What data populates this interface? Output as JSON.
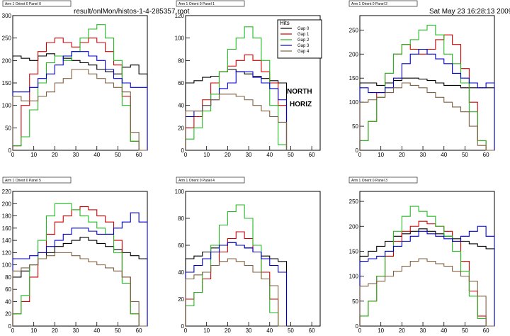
{
  "header": {
    "filename": "result/onlMon/histos-1-4-285357.root",
    "datetime": "Sat May 23 16:28:13 2009"
  },
  "legend": {
    "title": "Hits",
    "entries": [
      "Gap 0",
      "Gap 1",
      "Gap 2",
      "Gap 3",
      "Gap 4"
    ]
  },
  "annotation": {
    "line1": "NORTH",
    "line2": "HORIZ"
  },
  "colors": {
    "Gap 0": "#000000",
    "Gap 1": "#d00000",
    "Gap 2": "#22bb22",
    "Gap 3": "#0000cc",
    "Gap 4": "#806040"
  },
  "chart_data": [
    {
      "type": "histogram",
      "title": "Arm 1 Orient 0 Panel 0",
      "xlim": [
        0,
        64
      ],
      "ylim": [
        0,
        300
      ],
      "xticks": [
        0,
        10,
        20,
        30,
        40,
        50,
        60
      ],
      "yticks": [
        0,
        50,
        100,
        150,
        200,
        250,
        300
      ],
      "x": [
        0,
        4,
        8,
        12,
        16,
        20,
        24,
        28,
        32,
        36,
        40,
        44,
        48,
        52,
        56,
        60
      ],
      "series": [
        {
          "name": "Gap 0",
          "values": [
            210,
            205,
            200,
            210,
            215,
            210,
            205,
            200,
            195,
            190,
            180,
            175,
            170,
            185,
            190,
            170
          ]
        },
        {
          "name": "Gap 1",
          "values": [
            10,
            100,
            170,
            220,
            240,
            250,
            240,
            230,
            240,
            250,
            240,
            220,
            190,
            120,
            20,
            0
          ]
        },
        {
          "name": "Gap 2",
          "values": [
            10,
            30,
            90,
            150,
            195,
            210,
            200,
            220,
            250,
            270,
            280,
            250,
            200,
            100,
            20,
            0
          ]
        },
        {
          "name": "Gap 3",
          "values": [
            130,
            130,
            140,
            160,
            170,
            190,
            210,
            220,
            220,
            210,
            200,
            180,
            160,
            150,
            140,
            140
          ]
        },
        {
          "name": "Gap 4",
          "values": [
            120,
            110,
            110,
            120,
            130,
            150,
            160,
            180,
            180,
            170,
            160,
            150,
            140,
            130,
            40,
            0
          ]
        }
      ]
    },
    {
      "type": "histogram",
      "title": "Arm 1 Orient 0 Panel 1",
      "xlim": [
        0,
        64
      ],
      "ylim": [
        0,
        120
      ],
      "xticks": [
        0,
        10,
        20,
        30,
        40,
        50,
        60
      ],
      "yticks": [
        0,
        20,
        40,
        60,
        80,
        100,
        120
      ],
      "x": [
        0,
        4,
        8,
        12,
        16,
        20,
        24,
        28,
        32,
        36,
        40,
        44
      ],
      "series": [
        {
          "name": "Gap 0",
          "values": [
            60,
            62,
            65,
            66,
            70,
            72,
            70,
            68,
            66,
            64,
            62,
            60
          ]
        },
        {
          "name": "Gap 1",
          "values": [
            20,
            30,
            45,
            60,
            70,
            75,
            80,
            85,
            80,
            70,
            60,
            40
          ]
        },
        {
          "name": "Gap 2",
          "values": [
            10,
            20,
            35,
            50,
            70,
            90,
            100,
            110,
            100,
            80,
            40,
            5
          ]
        },
        {
          "name": "Gap 3",
          "values": [
            30,
            35,
            40,
            45,
            55,
            60,
            70,
            70,
            65,
            60,
            55,
            45
          ]
        },
        {
          "name": "Gap 4",
          "values": [
            35,
            35,
            40,
            45,
            50,
            50,
            48,
            45,
            40,
            35,
            30,
            25
          ]
        }
      ]
    },
    {
      "type": "histogram",
      "title": "Arm 1 Orient 0 Panel 2",
      "xlim": [
        0,
        64
      ],
      "ylim": [
        0,
        280
      ],
      "xticks": [
        0,
        10,
        20,
        30,
        40,
        50,
        60
      ],
      "yticks": [
        0,
        50,
        100,
        150,
        200,
        250
      ],
      "x": [
        0,
        4,
        8,
        12,
        16,
        20,
        24,
        28,
        32,
        36,
        40,
        44,
        48,
        52,
        56,
        60
      ],
      "series": [
        {
          "name": "Gap 0",
          "values": [
            140,
            140,
            135,
            140,
            145,
            150,
            150,
            148,
            145,
            140,
            135,
            135,
            130,
            130,
            130,
            130
          ]
        },
        {
          "name": "Gap 1",
          "values": [
            20,
            60,
            120,
            160,
            200,
            220,
            210,
            200,
            210,
            230,
            240,
            220,
            170,
            100,
            20,
            0
          ]
        },
        {
          "name": "Gap 2",
          "values": [
            20,
            60,
            110,
            160,
            200,
            220,
            230,
            250,
            260,
            240,
            200,
            180,
            140,
            80,
            20,
            0
          ]
        },
        {
          "name": "Gap 3",
          "values": [
            130,
            120,
            120,
            130,
            150,
            180,
            200,
            210,
            200,
            190,
            180,
            160,
            150,
            140,
            130,
            140
          ]
        },
        {
          "name": "Gap 4",
          "values": [
            100,
            105,
            110,
            120,
            130,
            140,
            135,
            130,
            120,
            110,
            100,
            90,
            80,
            50,
            10,
            0
          ]
        }
      ]
    },
    {
      "type": "histogram",
      "title": "Arm 1 Orient 0 Panel 5",
      "xlim": [
        0,
        64
      ],
      "ylim": [
        0,
        220
      ],
      "xticks": [
        0,
        10,
        20,
        30,
        40,
        50,
        60
      ],
      "yticks": [
        0,
        20,
        40,
        60,
        80,
        100,
        120,
        140,
        160,
        180,
        200,
        220
      ],
      "x": [
        0,
        4,
        8,
        12,
        16,
        20,
        24,
        28,
        32,
        36,
        40,
        44,
        48,
        52,
        56,
        60
      ],
      "series": [
        {
          "name": "Gap 0",
          "values": [
            80,
            90,
            100,
            110,
            120,
            130,
            135,
            140,
            145,
            140,
            135,
            130,
            125,
            120,
            115,
            110
          ]
        },
        {
          "name": "Gap 1",
          "values": [
            20,
            40,
            80,
            120,
            150,
            170,
            180,
            190,
            195,
            190,
            180,
            170,
            140,
            80,
            20,
            0
          ]
        },
        {
          "name": "Gap 2",
          "values": [
            20,
            50,
            100,
            140,
            180,
            200,
            200,
            190,
            180,
            170,
            160,
            150,
            120,
            70,
            20,
            0
          ]
        },
        {
          "name": "Gap 3",
          "values": [
            110,
            110,
            115,
            120,
            130,
            140,
            150,
            160,
            160,
            155,
            150,
            150,
            160,
            170,
            185,
            170
          ]
        },
        {
          "name": "Gap 4",
          "values": [
            90,
            95,
            100,
            110,
            115,
            120,
            120,
            115,
            110,
            105,
            100,
            95,
            90,
            80,
            40,
            0
          ]
        }
      ]
    },
    {
      "type": "histogram",
      "title": "Arm 1 Orient 0 Panel 4",
      "xlim": [
        0,
        64
      ],
      "ylim": [
        0,
        100
      ],
      "xticks": [
        0,
        10,
        20,
        30,
        40,
        50,
        60
      ],
      "yticks": [
        0,
        20,
        40,
        60,
        80,
        100
      ],
      "x": [
        0,
        4,
        8,
        12,
        16,
        20,
        24,
        28,
        32,
        36,
        40,
        44
      ],
      "series": [
        {
          "name": "Gap 0",
          "values": [
            50,
            52,
            55,
            58,
            60,
            62,
            60,
            58,
            55,
            52,
            50,
            48
          ]
        },
        {
          "name": "Gap 1",
          "values": [
            20,
            25,
            35,
            45,
            55,
            65,
            70,
            65,
            55,
            40,
            20,
            0
          ]
        },
        {
          "name": "Gap 2",
          "values": [
            15,
            25,
            40,
            60,
            75,
            85,
            90,
            80,
            60,
            35,
            10,
            0
          ]
        },
        {
          "name": "Gap 3",
          "values": [
            40,
            45,
            50,
            55,
            60,
            62,
            60,
            58,
            55,
            50,
            45,
            40
          ]
        },
        {
          "name": "Gap 4",
          "values": [
            35,
            38,
            40,
            45,
            48,
            50,
            48,
            45,
            40,
            35,
            30,
            0
          ]
        }
      ]
    },
    {
      "type": "histogram",
      "title": "Arm 1 Orient 0 Panel 3",
      "xlim": [
        0,
        64
      ],
      "ylim": [
        0,
        270
      ],
      "xticks": [
        0,
        10,
        20,
        30,
        40,
        50,
        60
      ],
      "yticks": [
        0,
        50,
        100,
        150,
        200,
        250
      ],
      "x": [
        0,
        4,
        8,
        12,
        16,
        20,
        24,
        28,
        32,
        36,
        40,
        44,
        48,
        52,
        56,
        60
      ],
      "series": [
        {
          "name": "Gap 0",
          "values": [
            140,
            150,
            160,
            170,
            180,
            185,
            190,
            195,
            190,
            185,
            180,
            175,
            170,
            165,
            160,
            155
          ]
        },
        {
          "name": "Gap 1",
          "values": [
            20,
            50,
            100,
            140,
            170,
            190,
            200,
            210,
            205,
            200,
            190,
            170,
            130,
            70,
            20,
            0
          ]
        },
        {
          "name": "Gap 2",
          "values": [
            20,
            50,
            100,
            150,
            190,
            220,
            240,
            230,
            220,
            200,
            180,
            150,
            110,
            60,
            15,
            0
          ]
        },
        {
          "name": "Gap 3",
          "values": [
            130,
            135,
            140,
            150,
            160,
            170,
            180,
            190,
            185,
            180,
            175,
            170,
            180,
            190,
            200,
            180
          ]
        },
        {
          "name": "Gap 4",
          "values": [
            80,
            85,
            90,
            100,
            110,
            120,
            130,
            135,
            130,
            125,
            120,
            110,
            100,
            90,
            60,
            0
          ]
        }
      ]
    }
  ]
}
